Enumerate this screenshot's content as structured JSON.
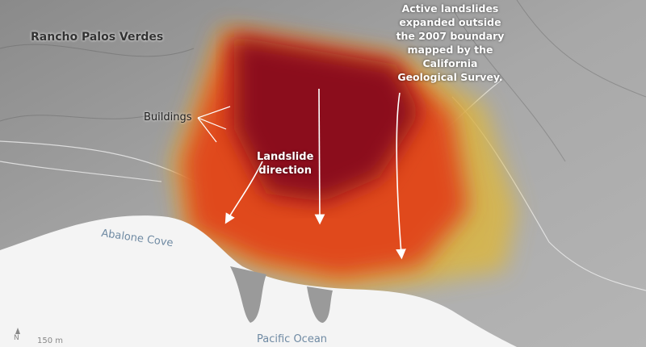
{
  "labels": {
    "place": "Rancho Palos Verdes",
    "buildings": "Buildings",
    "direction_line1": "Landslide",
    "direction_line2": "direction",
    "annotation": [
      "Active landslides",
      "expanded outside",
      "the 2007 boundary",
      "mapped by the",
      "California",
      "Geological Survey."
    ],
    "cove": "Abalone Cove",
    "ocean": "Pacific Ocean"
  },
  "scale_bar": {
    "label": "150 m",
    "north_label": "N"
  },
  "colors": {
    "land": "#9a9a9a",
    "ocean": "#f4f4f4",
    "fast_motion": "#8b0a1e",
    "medium_motion": "#e0481a",
    "slow_motion": "#d8b648"
  }
}
